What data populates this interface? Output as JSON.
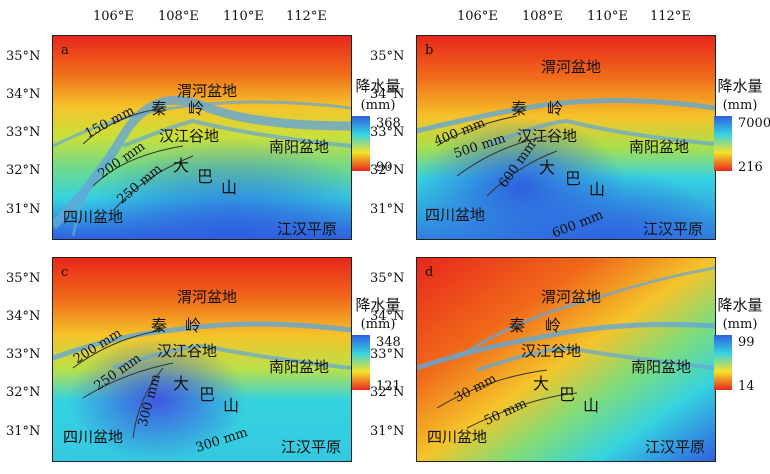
{
  "axes": {
    "lon_ticks": [
      "106°E",
      "108°E",
      "110°E",
      "112°E"
    ],
    "lat_ticks": [
      "35°N",
      "34°N",
      "33°N",
      "32°N",
      "31°N"
    ]
  },
  "colors": {
    "dry": "#e8271c",
    "mid": "#f5e22a",
    "wet_light": "#35d3e0",
    "wet": "#2f5fe0",
    "river": "#63a6d6"
  },
  "panels": [
    {
      "letter": "a",
      "legend": {
        "title": "降水量",
        "unit": "(mm)",
        "max": "368",
        "min": "90"
      },
      "places": {
        "weihe": "渭河盆地",
        "qin": "秦",
        "ling": "岭",
        "hanjiang": "汉江谷地",
        "nanyang": "南阳盆地",
        "da": "大",
        "ba": "巴",
        "shan": "山",
        "sichuan": "四川盆地",
        "jianghan": "江汉平原"
      },
      "isolines": [
        "150 mm",
        "200 mm",
        "250 mm"
      ]
    },
    {
      "letter": "b",
      "legend": {
        "title": "降水量",
        "unit": "(mm)",
        "max": "7000",
        "min": "216"
      },
      "places": {
        "weihe": "渭河盆地",
        "qin": "秦",
        "ling": "岭",
        "hanjiang": "汉江谷地",
        "nanyang": "南阳盆地",
        "da": "大",
        "ba": "巴",
        "shan": "山",
        "sichuan": "四川盆地",
        "jianghan": "江汉平原"
      },
      "isolines": [
        "400 mm",
        "500 mm",
        "600 mm",
        "600 mm"
      ]
    },
    {
      "letter": "c",
      "legend": {
        "title": "降水量",
        "unit": "(mm)",
        "max": "348",
        "min": "121"
      },
      "places": {
        "weihe": "渭河盆地",
        "qin": "秦",
        "ling": "岭",
        "hanjiang": "汉江谷地",
        "nanyang": "南阳盆地",
        "da": "大",
        "ba": "巴",
        "shan": "山",
        "sichuan": "四川盆地",
        "jianghan": "江汉平原"
      },
      "isolines": [
        "200 mm",
        "250 mm",
        "300 mm",
        "300 mm"
      ]
    },
    {
      "letter": "d",
      "legend": {
        "title": "降水量",
        "unit": "(mm)",
        "max": "99",
        "min": "14"
      },
      "places": {
        "weihe": "渭河盆地",
        "qin": "秦",
        "ling": "岭",
        "hanjiang": "汉江谷地",
        "nanyang": "南阳盆地",
        "da": "大",
        "ba": "巴",
        "shan": "山",
        "sichuan": "四川盆地",
        "jianghan": "江汉平原"
      },
      "isolines": [
        "30 mm",
        "50 mm"
      ]
    }
  ]
}
